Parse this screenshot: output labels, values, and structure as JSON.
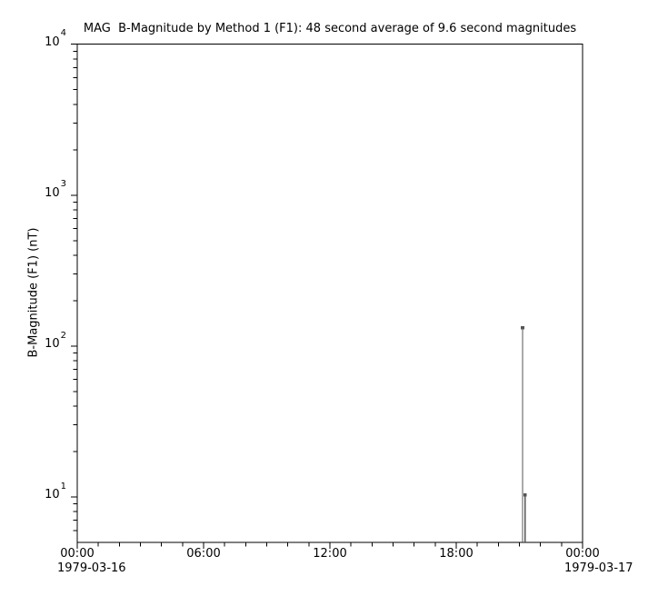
{
  "colors": {
    "background": "#ffffff",
    "axis": "#000000",
    "text": "#000000",
    "series": "#555555"
  },
  "chart_data": {
    "type": "line",
    "title": "MAG  B-Magnitude by Method 1 (F1): 48 second average of 9.6 second magnitudes",
    "ylabel": "B-Magnitude (F1) (nT)",
    "xlabel": "",
    "grid": false,
    "legend": false,
    "x_axis": {
      "unit": "hours",
      "range_hours": [
        0,
        24
      ],
      "major_tick_hours": [
        0,
        6,
        12,
        18,
        24
      ],
      "major_tick_labels": [
        "00:00",
        "06:00",
        "12:00",
        "18:00",
        "00:00"
      ],
      "minor_tick_interval_hours": 1,
      "date_start": "1979-03-16",
      "date_end": "1979-03-17"
    },
    "y_axis": {
      "scale": "log",
      "range": [
        5,
        10000
      ],
      "mantissa": "10",
      "major_ticks": [
        {
          "value": 10000,
          "exponent": "4"
        },
        {
          "value": 1000,
          "exponent": "3"
        },
        {
          "value": 100,
          "exponent": "2"
        },
        {
          "value": 10,
          "exponent": "1"
        }
      ]
    },
    "series": [
      {
        "name": "B-Magnitude (F1)",
        "color": "#555555",
        "marker": "square",
        "stems_to_baseline": true,
        "points": [
          {
            "time": "21:09",
            "hours": 21.15,
            "value_nT": 132
          },
          {
            "time": "21:16",
            "hours": 21.27,
            "value_nT": 10.3
          }
        ]
      }
    ]
  }
}
